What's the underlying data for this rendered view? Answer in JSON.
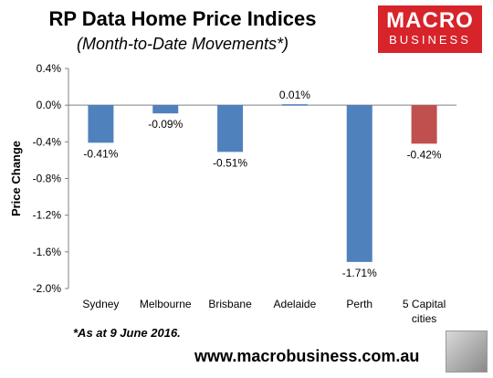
{
  "header": {
    "title": "RP Data Home Price Indices",
    "subtitle": "(Month-to-Date Movements*)"
  },
  "logo": {
    "line1": "MACRO",
    "line2": "BUSINESS",
    "color": "#d7232a"
  },
  "footnote": "*As at 9 June 2016.",
  "url": "www.macrobusiness.com.au",
  "chart_data": {
    "type": "bar",
    "title": "RP Data Home Price Indices",
    "subtitle": "(Month-to-Date Movements*)",
    "ylabel": "Price Change",
    "xlabel": "",
    "ylim": [
      -2.0,
      0.4
    ],
    "yticks": [
      0.4,
      0.0,
      -0.4,
      -0.8,
      -1.2,
      -1.6,
      -2.0
    ],
    "ytick_labels": [
      "0.4%",
      "0.0%",
      "-0.4%",
      "-0.8%",
      "-1.2%",
      "-1.6%",
      "-2.0%"
    ],
    "grid": false,
    "categories": [
      "Sydney",
      "Melbourne",
      "Brisbane",
      "Adelaide",
      "Perth",
      "5 Capital cities"
    ],
    "values": [
      -0.41,
      -0.09,
      -0.51,
      0.01,
      -1.71,
      -0.42
    ],
    "data_labels": [
      "-0.41%",
      "-0.09%",
      "-0.51%",
      "0.01%",
      "-1.71%",
      "-0.42%"
    ],
    "colors": [
      "#4f81bd",
      "#4f81bd",
      "#4f81bd",
      "#4f81bd",
      "#4f81bd",
      "#c0504d"
    ]
  }
}
